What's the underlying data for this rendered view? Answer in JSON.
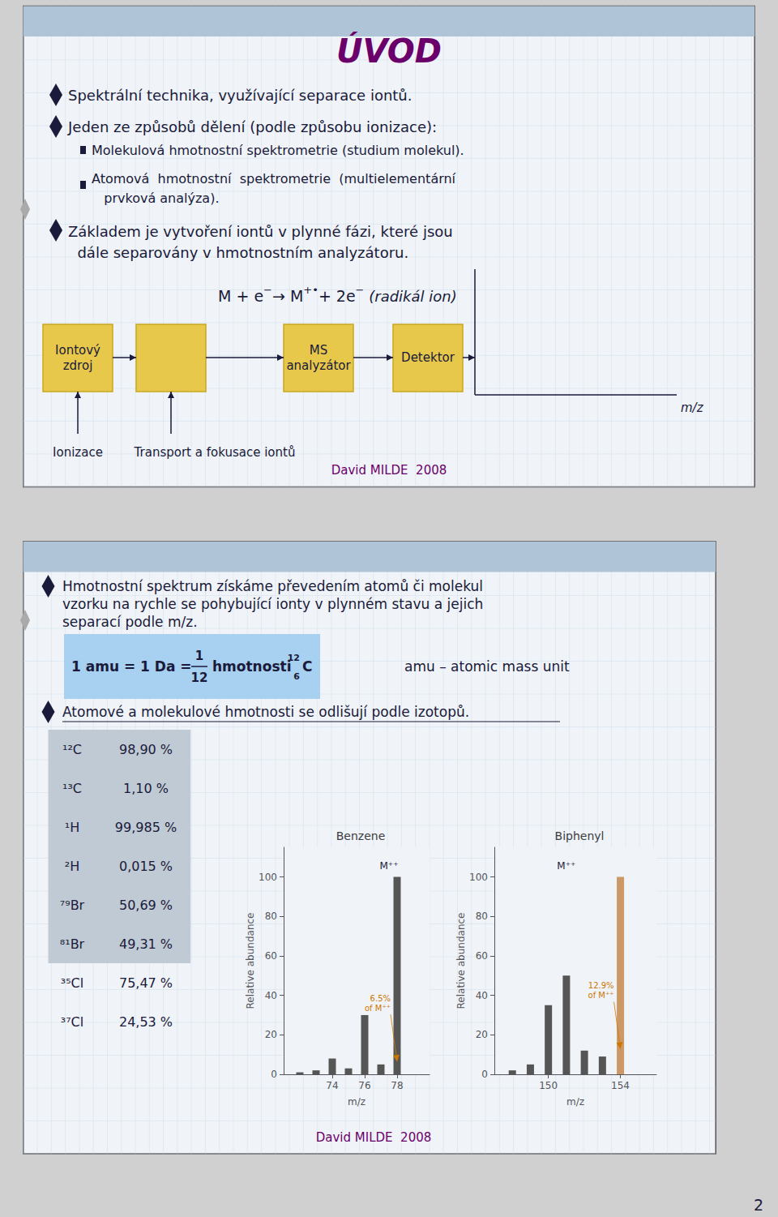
{
  "chart_data": [
    {
      "type": "bar",
      "title": "Benzene",
      "x_label": "m/z",
      "y_label": "Relative abundance",
      "x": [
        72,
        73,
        74,
        75,
        76,
        77,
        78
      ],
      "values": [
        1,
        2,
        8,
        3,
        30,
        5,
        100
      ],
      "colors": [
        "#555555",
        "#555555",
        "#555555",
        "#555555",
        "#555555",
        "#555555",
        "#555555"
      ],
      "xlim": [
        71,
        80
      ],
      "xticks": [
        74,
        76,
        78
      ],
      "ylim": [
        0,
        115
      ],
      "yticks": [
        0,
        20,
        40,
        60,
        80,
        100
      ],
      "grid": false,
      "annotations": [
        {
          "text": "6.5%\nof M⁺⁺",
          "x": 78,
          "y": 6.5,
          "color": "#cc7700"
        },
        {
          "text": "M⁺⁺",
          "x": 77.5,
          "y": 103
        }
      ]
    },
    {
      "type": "bar",
      "title": "Biphenyl",
      "x_label": "m/z",
      "y_label": "Relative abundance",
      "x": [
        148,
        149,
        150,
        151,
        152,
        153,
        154
      ],
      "values": [
        2,
        5,
        35,
        50,
        12,
        9,
        100
      ],
      "colors": [
        "#555555",
        "#555555",
        "#555555",
        "#555555",
        "#555555",
        "#555555",
        "#cc9966"
      ],
      "xlim": [
        147,
        156
      ],
      "xticks": [
        150,
        154
      ],
      "ylim": [
        0,
        115
      ],
      "yticks": [
        0,
        20,
        40,
        60,
        80,
        100
      ],
      "grid": false,
      "annotations": [
        {
          "text": "12.9%\nof M⁺⁺",
          "x": 154,
          "y": 12.9,
          "color": "#cc7700"
        },
        {
          "text": "M⁺⁺",
          "x": 151,
          "y": 103
        }
      ]
    }
  ],
  "annotations": [
    "ÚVOD",
    "Spektrální technika, využívající separace iontů.",
    "Jeden ze způsobů dělení (podle způsobu ionizace):",
    "Molekulová hmotnostní spektrometrie (studium molekul).",
    "Atomová  hmotnostní  spektrometrie  (multielementární\n   prvková analýza).",
    "Základem je vytvoření iontů v plynné fázi, které jsou\n  dále separovány v hmotnostním analyzátoru.",
    "M + e",
    "−",
    "→ M",
    "+•",
    "+ 2e",
    "−",
    " (radikál ion)",
    "Iontový\nzdroj",
    "MS\nanalyzátor",
    "Detektor",
    "m/z",
    "Ionizace",
    "Transport a fokusace iontů",
    "David MILDE  2008",
    "Hmotnostní spektrum získáme převedením atomů či molekul\nvzorku na rychle se pohybující ionty v plynném stavu a jejich\nseparací podle m/z.",
    "1 amu = 1 Da =",
    "1",
    "12",
    "hmotnosti",
    "12",
    "C",
    "6",
    "amu – atomic mass unit",
    "Atomové a molekulové hmotnosti se odlišují podle izotopů.",
    "¹²C",
    "98,90 %",
    "¹³C",
    "1,10 %",
    "¹H",
    "99,985 %",
    "²H",
    "0,015 %",
    "⁷⁹Br",
    "50,69 %",
    "⁸¹Br",
    "49,31 %",
    "³⁵Cl",
    "75,47 %",
    "³⁷Cl",
    "24,53 %",
    "David MILDE  2008",
    "2"
  ]
}
